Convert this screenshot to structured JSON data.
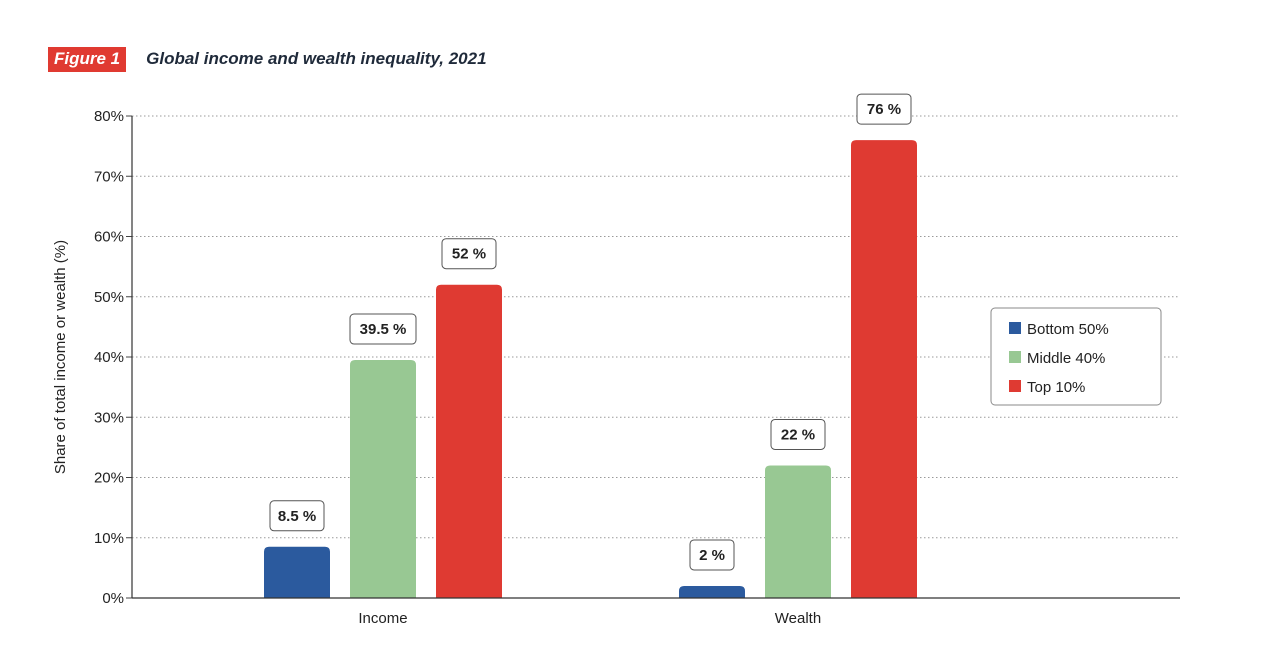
{
  "figure": {
    "badge": "Figure 1",
    "title": "Global income and wealth inequality, 2021"
  },
  "chart_data": {
    "type": "bar",
    "title": "Global income and wealth inequality, 2021",
    "xlabel": "",
    "ylabel": "Share of total income or wealth (%)",
    "categories": [
      "Income",
      "Wealth"
    ],
    "series": [
      {
        "name": "Bottom 50%",
        "values": [
          8.5,
          2
        ],
        "labels": [
          "8.5 %",
          "2 %"
        ],
        "color": "#2b5a9e"
      },
      {
        "name": "Middle 40%",
        "values": [
          39.5,
          22
        ],
        "labels": [
          "39.5 %",
          "22 %"
        ],
        "color": "#98c893"
      },
      {
        "name": "Top 10%",
        "values": [
          52,
          76
        ],
        "labels": [
          "52 %",
          "76 %"
        ],
        "color": "#df3a32"
      }
    ],
    "ylim": [
      0,
      80
    ],
    "yticks": [
      0,
      10,
      20,
      30,
      40,
      50,
      60,
      70,
      80
    ],
    "ytick_labels": [
      "0%",
      "10%",
      "20%",
      "30%",
      "40%",
      "50%",
      "60%",
      "70%",
      "80%"
    ],
    "grid": "horizontal dotted",
    "legend_position": "right"
  }
}
